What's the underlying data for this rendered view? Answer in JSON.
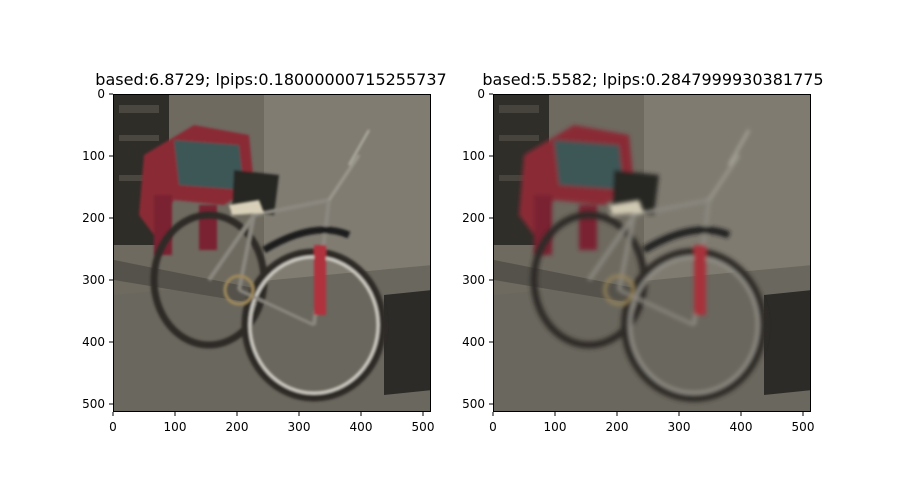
{
  "figure": {
    "panels": [
      {
        "title": "based:6.8729; lpips:0.18000000715255737",
        "x_ticks": [
          "0",
          "100",
          "200",
          "300",
          "400",
          "500"
        ],
        "y_ticks": [
          "0",
          "100",
          "200",
          "300",
          "400",
          "500"
        ]
      },
      {
        "title": "based:5.5582; lpips:0.2847999930381775",
        "x_ticks": [
          "0",
          "100",
          "200",
          "300",
          "400",
          "500"
        ],
        "y_ticks": [
          "0",
          "100",
          "200",
          "300",
          "400",
          "500"
        ]
      }
    ],
    "colors": {
      "background": "#6b675d",
      "wall": "#7e7a70",
      "dark_window": "#2f2d28",
      "red_chair": "#8b2a35",
      "teal_basket": "#3b5555",
      "tire": "#c9c7c0",
      "red_accent": "#b0323c"
    }
  }
}
